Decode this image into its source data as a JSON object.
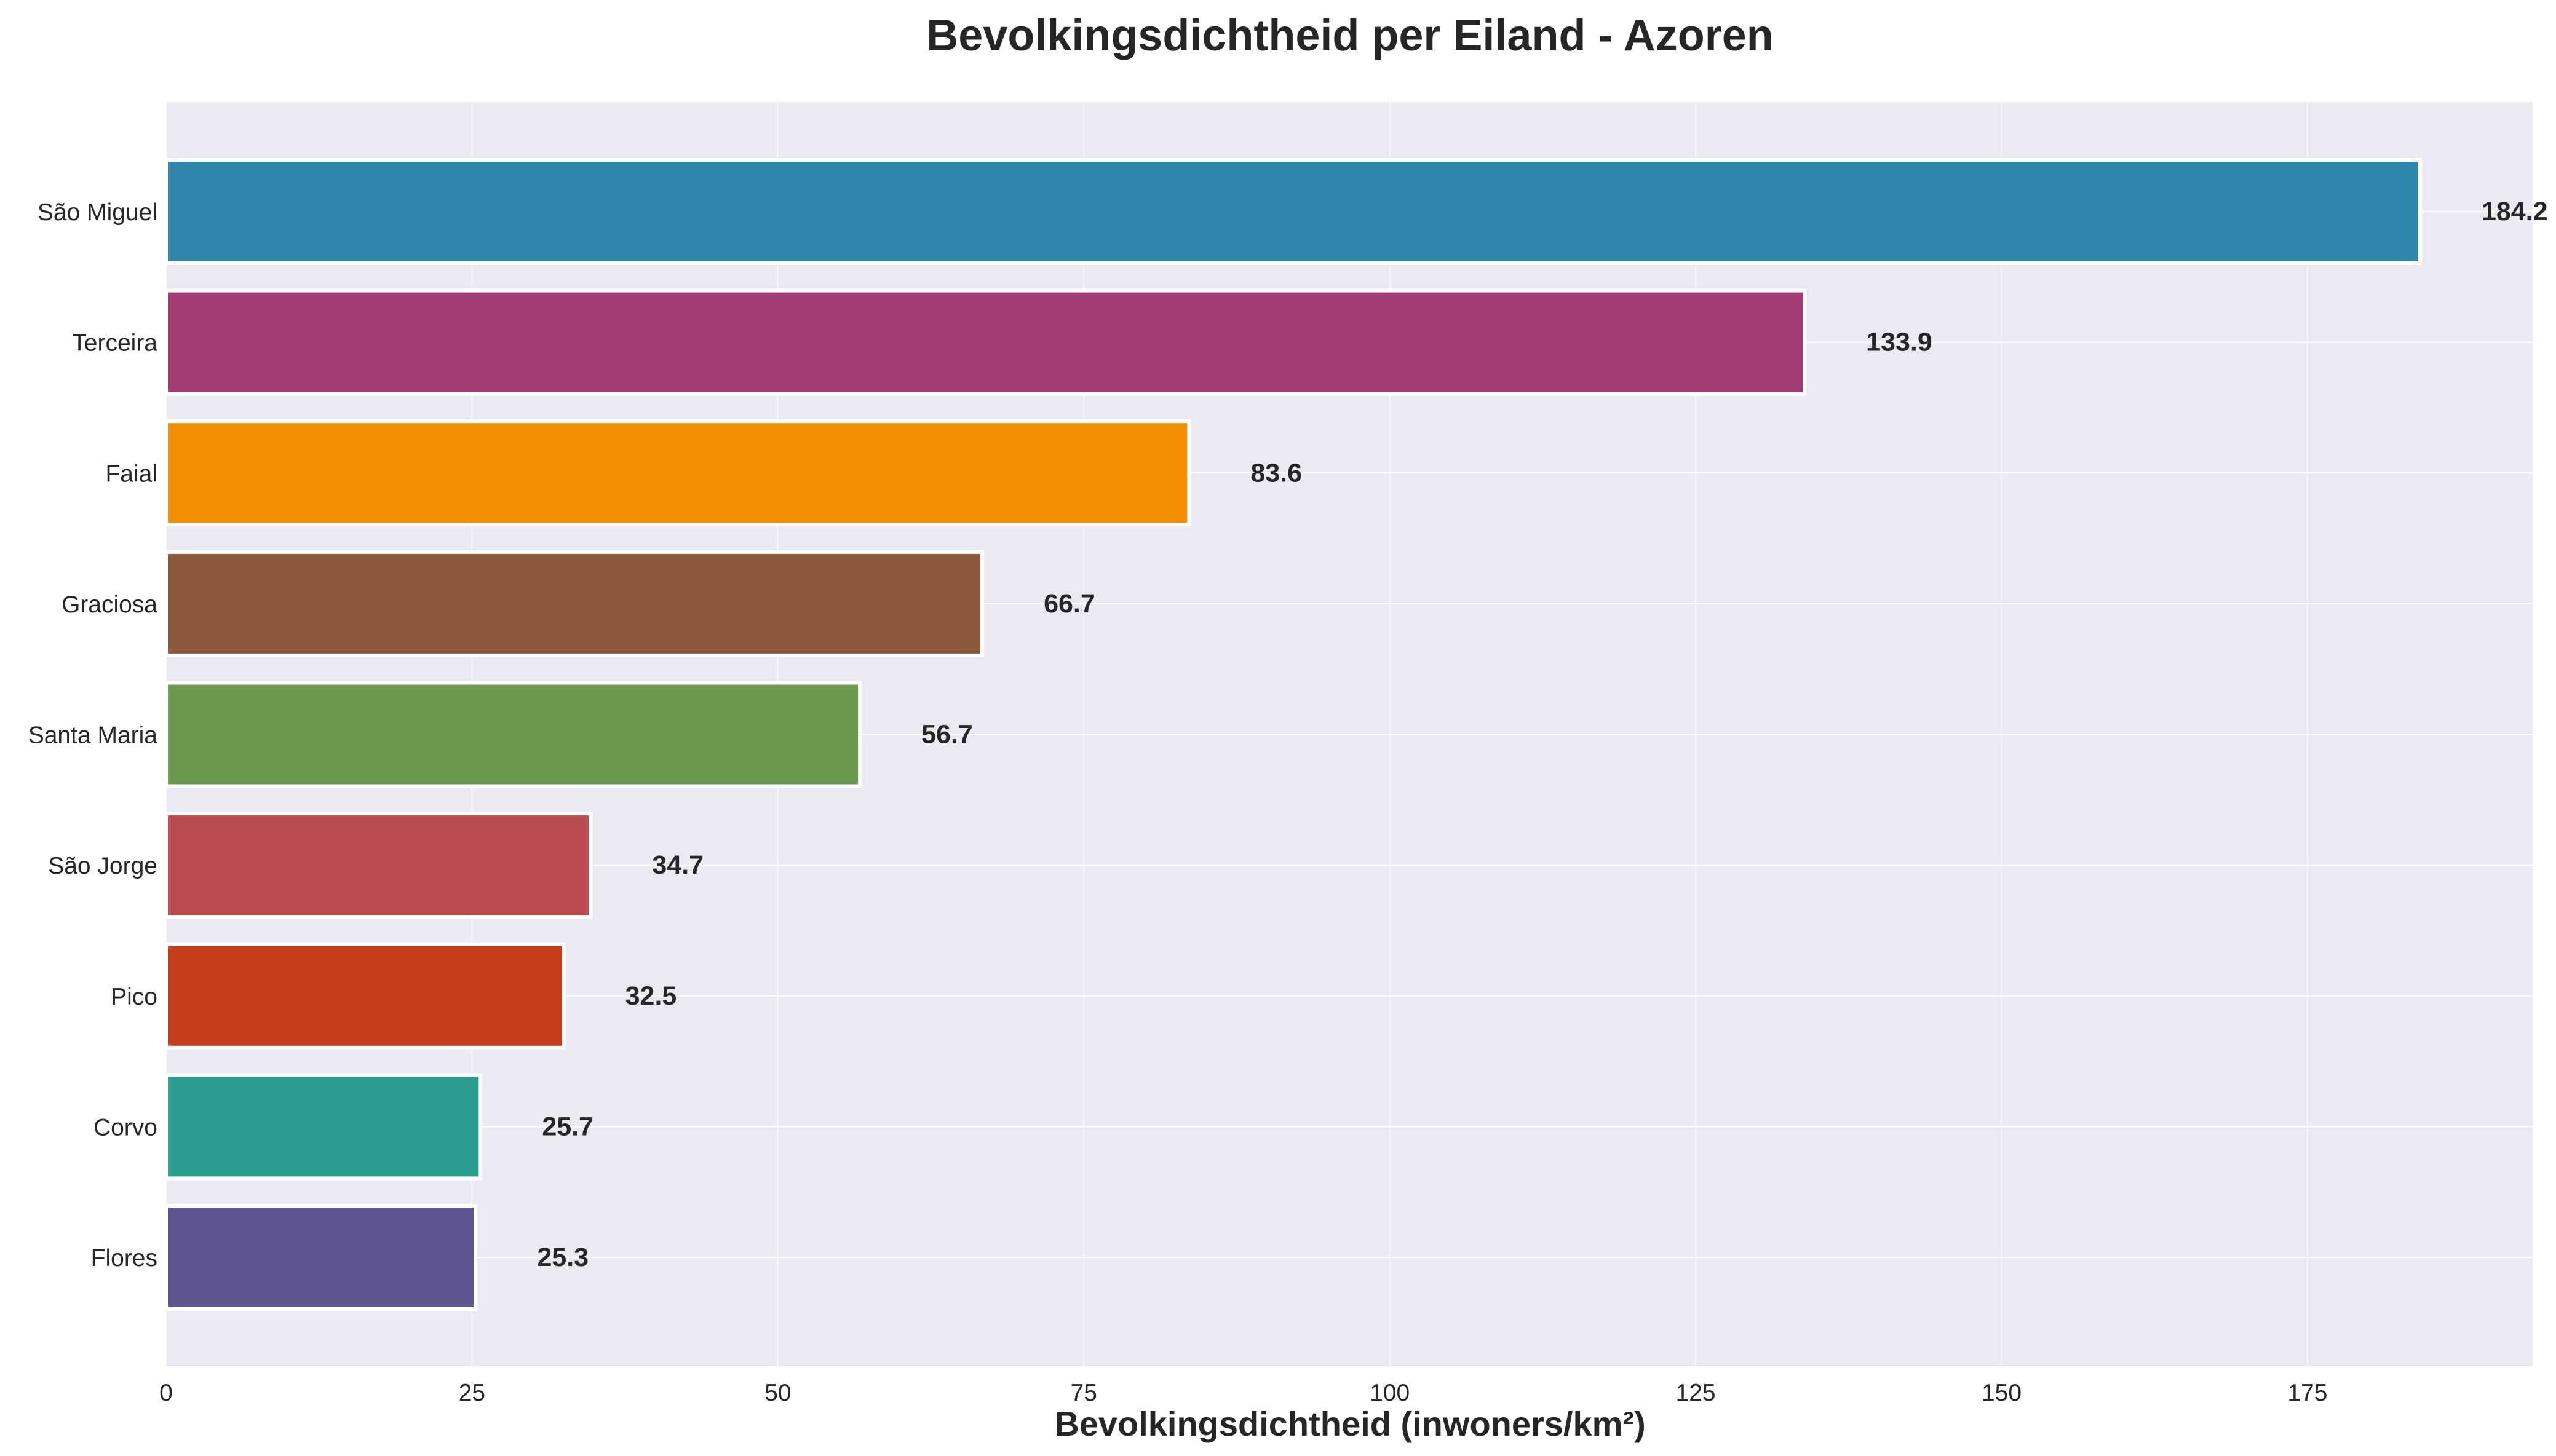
{
  "chart_data": {
    "type": "bar",
    "orientation": "horizontal",
    "title": "Bevolkingsdichtheid per Eiland - Azoren",
    "xlabel": "Bevolkingsdichtheid (inwoners/km²)",
    "ylabel": "",
    "xlim": [
      0,
      193.4
    ],
    "xticks": [
      0,
      25,
      50,
      75,
      100,
      125,
      150,
      175
    ],
    "grid": true,
    "categories": [
      "São Miguel",
      "Terceira",
      "Faial",
      "Graciosa",
      "Santa Maria",
      "São Jorge",
      "Pico",
      "Corvo",
      "Flores"
    ],
    "values": [
      184.2,
      133.9,
      83.6,
      66.7,
      56.7,
      34.7,
      32.5,
      25.7,
      25.3
    ],
    "value_labels": [
      "184.2",
      "133.9",
      "83.6",
      "66.7",
      "56.7",
      "34.7",
      "32.5",
      "25.7",
      "25.3"
    ],
    "colors": [
      "#2E86AB",
      "#A23B72",
      "#F18F01",
      "#8B5A3C",
      "#6A994E",
      "#BC4B51",
      "#C73E1D",
      "#2A9D8F",
      "#5E548E"
    ]
  },
  "style": {
    "plot_background": "#EAEAF2",
    "grid_color": "#FFFFFF",
    "text_color": "#262626",
    "bar_edge_color": "#FFFFFF"
  }
}
